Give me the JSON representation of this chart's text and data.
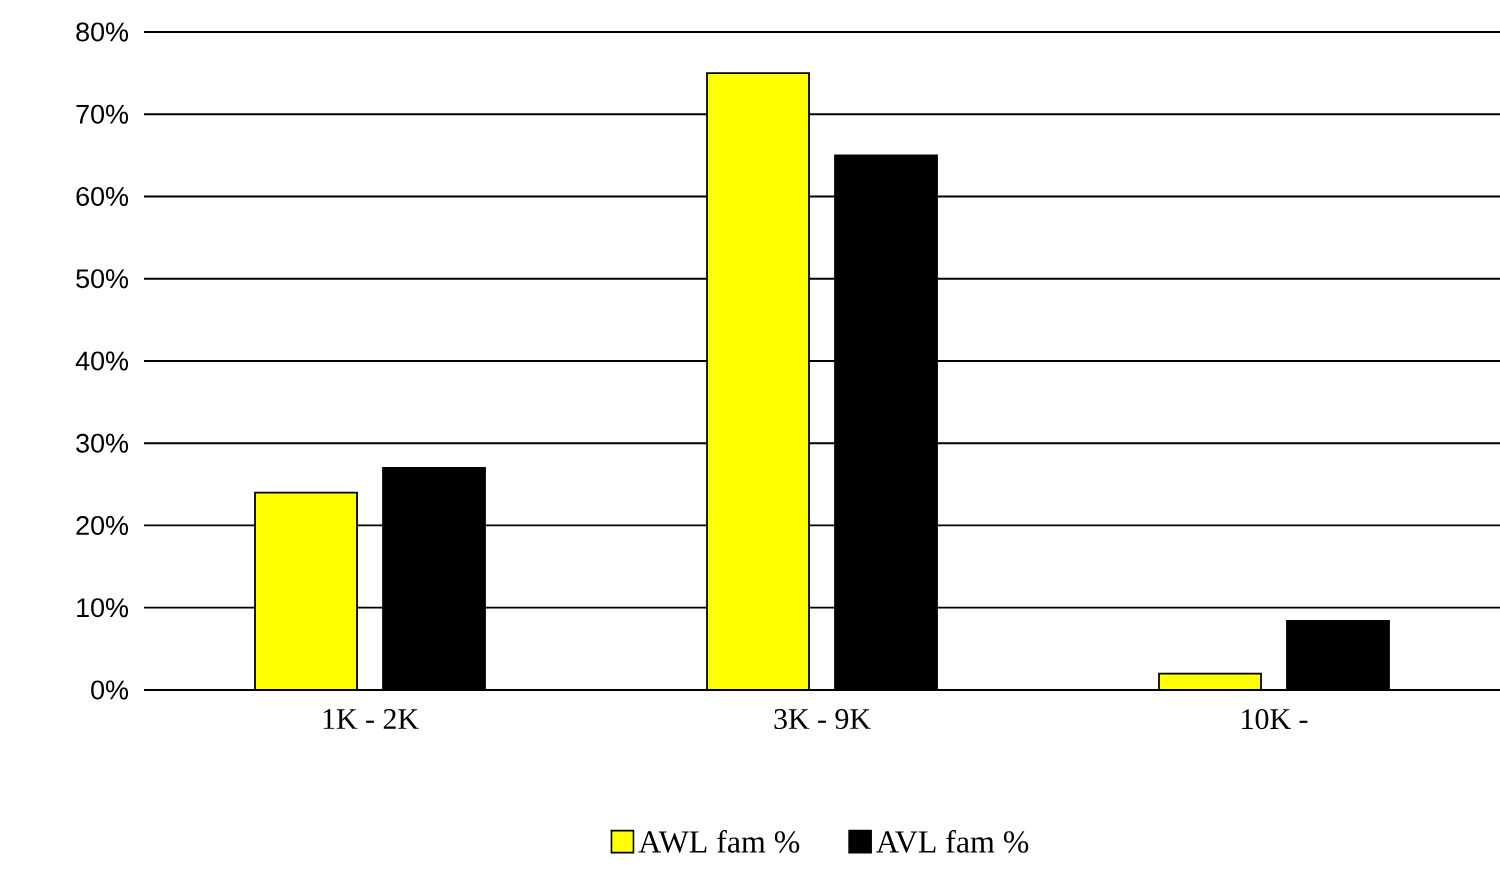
{
  "chart_data": {
    "type": "bar",
    "categories": [
      "1K - 2K",
      "3K - 9K",
      "10K -"
    ],
    "series": [
      {
        "name": "AWL fam %",
        "color": "#ffff00",
        "values": [
          24,
          75,
          2
        ]
      },
      {
        "name": "AVL fam %",
        "color": "#000000",
        "values": [
          27,
          65,
          8.4
        ]
      }
    ],
    "ylim": [
      0,
      80
    ],
    "yticks": [
      {
        "value": 0,
        "label": "0%"
      },
      {
        "value": 10,
        "label": "10%"
      },
      {
        "value": 20,
        "label": "20%"
      },
      {
        "value": 30,
        "label": "30%"
      },
      {
        "value": 40,
        "label": "40%"
      },
      {
        "value": 50,
        "label": "50%"
      },
      {
        "value": 60,
        "label": "60%"
      },
      {
        "value": 70,
        "label": "70%"
      },
      {
        "value": 80,
        "label": "80%"
      }
    ],
    "grid": "y",
    "legend": "bottom"
  }
}
